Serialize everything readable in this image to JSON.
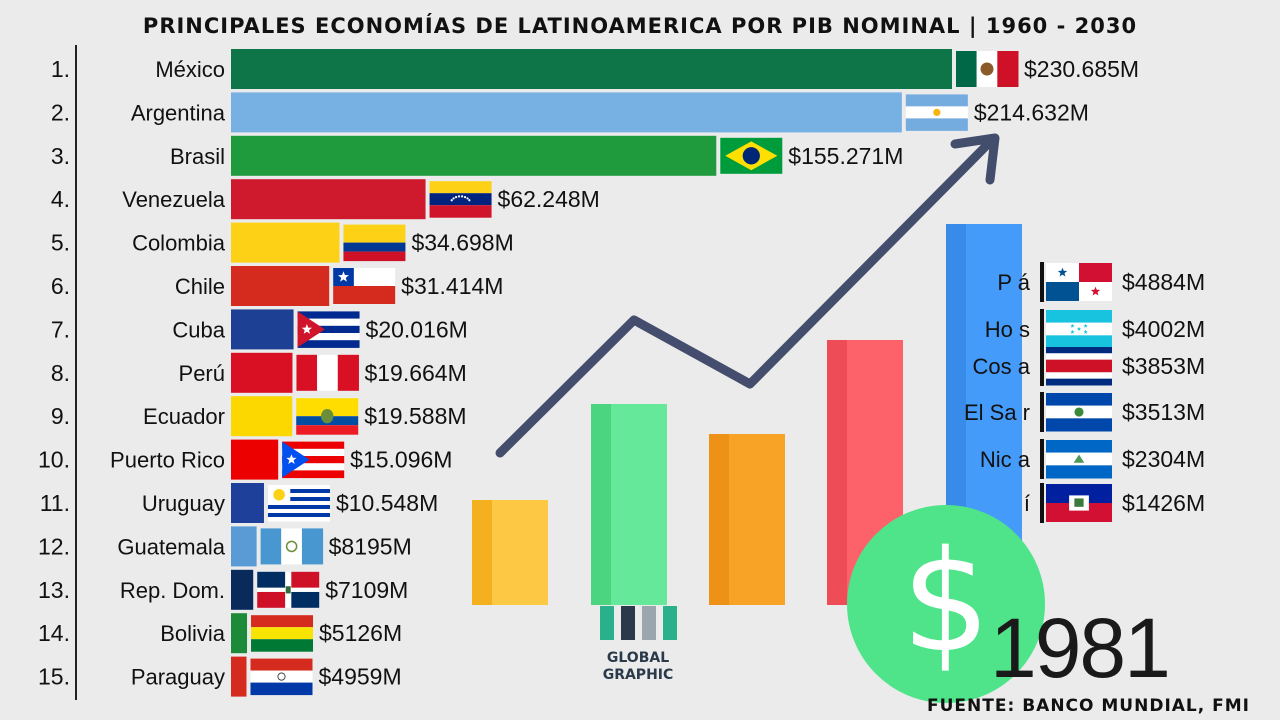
{
  "header": {
    "title": "PRINCIPALES ECONOMÍAS DE LATINOAMERICA POR PIB NOMINAL | 1960 - 2030"
  },
  "footer": {
    "source": "FUENTE: BANCO MUNDIAL, FMI"
  },
  "year_label": "1981",
  "logo": {
    "line1": "GLOBAL",
    "line2": "GRAPHIC"
  },
  "colors": {
    "background": "#ebebeb",
    "arrow": "#3b4566",
    "dollar_circle": "#4fe38a"
  },
  "chart_data": {
    "type": "bar",
    "orientation": "horizontal",
    "title": "PRINCIPALES ECONOMÍAS DE LATINOAMERICA POR PIB NOMINAL | 1960 - 2030",
    "year": "1981",
    "unit": "USD millions",
    "ylabel": "",
    "xlabel": "",
    "rows": [
      {
        "rank": "1.",
        "name": "México",
        "value": 230685,
        "label": "$230.685M",
        "color": "#0e7548",
        "flag": "mexico"
      },
      {
        "rank": "2.",
        "name": "Argentina",
        "value": 214632,
        "label": "$214.632M",
        "color": "#77b0e3",
        "flag": "argentina"
      },
      {
        "rank": "3.",
        "name": "Brasil",
        "value": 155271,
        "label": "$155.271M",
        "color": "#1f9a3c",
        "flag": "brasil"
      },
      {
        "rank": "4.",
        "name": "Venezuela",
        "value": 62248,
        "label": "$62.248M",
        "color": "#cf1a2e",
        "flag": "venezuela"
      },
      {
        "rank": "5.",
        "name": "Colombia",
        "value": 34698,
        "label": "$34.698M",
        "color": "#fcd116",
        "flag": "colombia"
      },
      {
        "rank": "6.",
        "name": "Chile",
        "value": 31414,
        "label": "$31.414M",
        "color": "#d52b1e",
        "flag": "chile"
      },
      {
        "rank": "7.",
        "name": "Cuba",
        "value": 20016,
        "label": "$20.016M",
        "color": "#1d3f94",
        "flag": "cuba"
      },
      {
        "rank": "8.",
        "name": "Perú",
        "value": 19664,
        "label": "$19.664M",
        "color": "#d91023",
        "flag": "peru"
      },
      {
        "rank": "9.",
        "name": "Ecuador",
        "value": 19588,
        "label": "$19.588M",
        "color": "#fdd700",
        "flag": "ecuador"
      },
      {
        "rank": "10.",
        "name": "Puerto Rico",
        "value": 15096,
        "label": "$15.096M",
        "color": "#ed0000",
        "flag": "puertorico"
      },
      {
        "rank": "11.",
        "name": "Uruguay",
        "value": 10548,
        "label": "$10.548M",
        "color": "#1e3f9a",
        "flag": "uruguay"
      },
      {
        "rank": "12.",
        "name": "Guatemala",
        "value": 8195,
        "label": "$8195M",
        "color": "#5b9bd5",
        "flag": "guatemala"
      },
      {
        "rank": "13.",
        "name": "Rep. Dom.",
        "value": 7109,
        "label": "$7109M",
        "color": "#0b2a5c",
        "flag": "repdom"
      },
      {
        "rank": "14.",
        "name": "Bolivia",
        "value": 5126,
        "label": "$5126M",
        "color": "#1d8a3a",
        "flag": "bolivia"
      },
      {
        "rank": "15.",
        "name": "Paraguay",
        "value": 4959,
        "label": "$4959M",
        "color": "#d52b1e",
        "flag": "paraguay"
      }
    ],
    "right_column": [
      {
        "name": "Panamá",
        "visible_text": "P        á",
        "value": 4884,
        "label": "$4884M",
        "flag": "panama"
      },
      {
        "name": "Honduras",
        "visible_text": "Ho        s",
        "value": 4002,
        "label": "$4002M",
        "flag": "honduras"
      },
      {
        "name": "Costa Rica",
        "visible_text": "Cos        a",
        "value": 3853,
        "label": "$3853M",
        "flag": "costarica"
      },
      {
        "name": "El Salvador",
        "visible_text": "El Sa        r",
        "value": 3513,
        "label": "$3513M",
        "flag": "elsalvador"
      },
      {
        "name": "Nicaragua",
        "visible_text": "Nic        a",
        "value": 2304,
        "label": "$2304M",
        "flag": "nicaragua"
      },
      {
        "name": "Haití",
        "visible_text": "í",
        "value": 1426,
        "label": "$1426M",
        "flag": "haiti"
      }
    ]
  }
}
